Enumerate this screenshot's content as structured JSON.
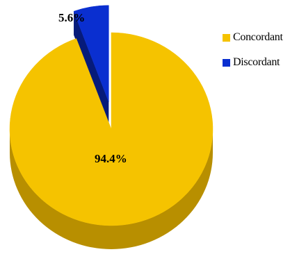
{
  "chart_data": {
    "type": "pie",
    "style": "3d-exploded",
    "title": "",
    "slices": [
      {
        "label": "Concordant",
        "value": 94.4,
        "display": "94.4%",
        "color": "#f5c300",
        "side_color": "#b88f00",
        "exploded": false
      },
      {
        "label": "Discordant",
        "value": 5.6,
        "display": "5.6%",
        "color": "#0a2fd0",
        "side_color": "#061b7a",
        "exploded": true
      }
    ],
    "legend": {
      "position": "right"
    }
  }
}
